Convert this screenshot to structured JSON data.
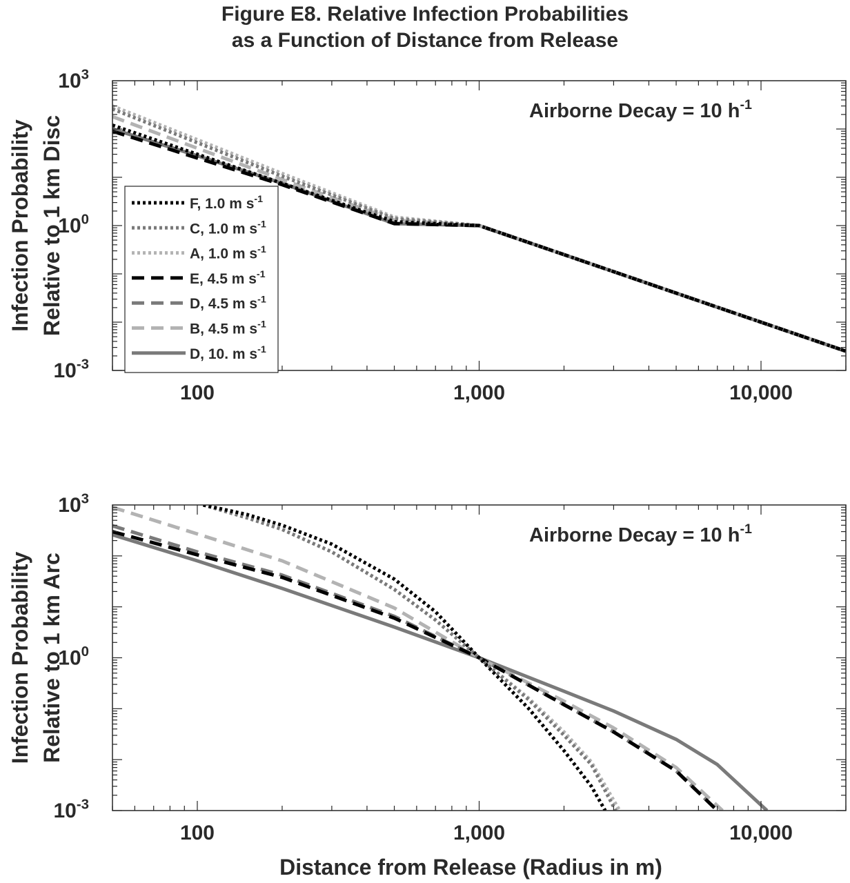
{
  "figure": {
    "title_line1": "Figure E8. Relative Infection Probabilities",
    "title_line2": "as a Function of Distance from Release"
  },
  "chart_data": [
    {
      "type": "line",
      "id": "top",
      "ylabel_line1": "Infection Probability",
      "ylabel_line2": "Relative to 1 km Disc",
      "xlabel": "",
      "annotation": {
        "text": "Airborne Decay = 10 h",
        "sup": "-1"
      },
      "xscale": "log",
      "yscale": "log",
      "xlim": [
        50,
        20000
      ],
      "ylim": [
        0.001,
        1000
      ],
      "xticks": [
        100,
        1000,
        10000
      ],
      "xtick_labels": [
        "100",
        "1,000",
        "10,000"
      ],
      "yticks": [
        0.001,
        1,
        1000
      ],
      "ytick_labels": [
        {
          "base": "10",
          "exp": "-3"
        },
        {
          "base": "10",
          "exp": "0"
        },
        {
          "base": "10",
          "exp": "3"
        }
      ],
      "legend": {
        "placement": "left",
        "entries": [
          {
            "label": "F, 1.0 m s",
            "sup": "-1",
            "color": "#000000",
            "style": "dotted"
          },
          {
            "label": "C, 1.0 m s",
            "sup": "-1",
            "color": "#7a7a7a",
            "style": "dotted"
          },
          {
            "label": "A, 1.0 m s",
            "sup": "-1",
            "color": "#b3b3b3",
            "style": "dotted"
          },
          {
            "label": "E, 4.5 m s",
            "sup": "-1",
            "color": "#000000",
            "style": "dashed"
          },
          {
            "label": "D, 4.5 m s",
            "sup": "-1",
            "color": "#7a7a7a",
            "style": "dashed"
          },
          {
            "label": "B, 4.5 m s",
            "sup": "-1",
            "color": "#b3b3b3",
            "style": "dashed"
          },
          {
            "label": "D, 10. m s",
            "sup": "-1",
            "color": "#7a7a7a",
            "style": "solid"
          }
        ]
      },
      "series": [
        {
          "name": "F, 1.0 m s-1",
          "color": "#000000",
          "style": "dotted",
          "x": [
            50,
            100,
            200,
            500,
            1000,
            2000,
            5000,
            10000,
            20000
          ],
          "y": [
            120,
            30,
            7.5,
            1.2,
            1,
            0.25,
            0.04,
            0.01,
            0.0025
          ]
        },
        {
          "name": "C, 1.0 m s-1",
          "color": "#7a7a7a",
          "style": "dotted",
          "x": [
            50,
            100,
            200,
            500,
            1000,
            2000,
            5000,
            10000,
            20000
          ],
          "y": [
            260,
            52,
            10.5,
            1.4,
            1,
            0.25,
            0.04,
            0.01,
            0.0025
          ]
        },
        {
          "name": "A, 1.0 m s-1",
          "color": "#b3b3b3",
          "style": "dotted",
          "x": [
            50,
            100,
            200,
            500,
            1000,
            2000,
            5000,
            10000,
            20000
          ],
          "y": [
            300,
            60,
            12,
            1.5,
            1,
            0.25,
            0.04,
            0.01,
            0.0025
          ]
        },
        {
          "name": "E, 4.5 m s-1",
          "color": "#000000",
          "style": "dashed",
          "x": [
            50,
            100,
            200,
            500,
            1000,
            2000,
            5000,
            10000,
            20000
          ],
          "y": [
            90,
            25,
            7,
            1.1,
            1,
            0.25,
            0.04,
            0.01,
            0.0025
          ]
        },
        {
          "name": "D, 4.5 m s-1",
          "color": "#7a7a7a",
          "style": "dashed",
          "x": [
            50,
            100,
            200,
            500,
            1000,
            2000,
            5000,
            10000,
            20000
          ],
          "y": [
            100,
            27,
            7.3,
            1.1,
            1,
            0.25,
            0.04,
            0.01,
            0.0025
          ]
        },
        {
          "name": "B, 4.5 m s-1",
          "color": "#b3b3b3",
          "style": "dashed",
          "x": [
            50,
            100,
            200,
            500,
            1000,
            2000,
            5000,
            10000,
            20000
          ],
          "y": [
            180,
            40,
            9,
            1.3,
            1,
            0.25,
            0.04,
            0.01,
            0.0025
          ]
        },
        {
          "name": "D, 10. m s-1",
          "color": "#7a7a7a",
          "style": "solid",
          "x": [
            50,
            100,
            200,
            500,
            1000,
            2000,
            5000,
            10000,
            20000
          ],
          "y": [
            100,
            28,
            7.5,
            1.1,
            1,
            0.25,
            0.04,
            0.01,
            0.0025
          ]
        }
      ]
    },
    {
      "type": "line",
      "id": "bottom",
      "ylabel_line1": "Infection Probability",
      "ylabel_line2": "Relative to 1 km Arc",
      "xlabel": "Distance from Release (Radius in m)",
      "annotation": {
        "text": "Airborne Decay = 10 h",
        "sup": "-1"
      },
      "xscale": "log",
      "yscale": "log",
      "xlim": [
        50,
        20000
      ],
      "ylim": [
        0.001,
        1000
      ],
      "xticks": [
        100,
        1000,
        10000
      ],
      "xtick_labels": [
        "100",
        "1,000",
        "10,000"
      ],
      "yticks": [
        0.001,
        1,
        1000
      ],
      "ytick_labels": [
        {
          "base": "10",
          "exp": "-3"
        },
        {
          "base": "10",
          "exp": "0"
        },
        {
          "base": "10",
          "exp": "3"
        }
      ],
      "series": [
        {
          "name": "F, 1.0 m s-1",
          "color": "#000000",
          "style": "dotted",
          "x": [
            105,
            150,
            200,
            300,
            500,
            700,
            1000,
            1500,
            2000,
            2500,
            2800
          ],
          "y": [
            1000,
            650,
            400,
            170,
            35,
            8,
            1,
            0.1,
            0.015,
            0.003,
            0.001
          ]
        },
        {
          "name": "C, 1.0 m s-1",
          "color": "#7a7a7a",
          "style": "dotted",
          "x": [
            105,
            150,
            200,
            300,
            500,
            700,
            1000,
            1500,
            2000,
            2500,
            3050
          ],
          "y": [
            1000,
            560,
            330,
            120,
            22,
            5.5,
            1,
            0.15,
            0.03,
            0.008,
            0.001
          ]
        },
        {
          "name": "A, 1.0 m s-1",
          "color": "#b3b3b3",
          "style": "dotted",
          "x": [
            105,
            150,
            200,
            300,
            500,
            700,
            1000,
            1500,
            2000,
            2500,
            3150
          ],
          "y": [
            1000,
            560,
            330,
            120,
            22,
            5.5,
            1,
            0.16,
            0.035,
            0.009,
            0.001
          ]
        },
        {
          "name": "E, 4.5 m s-1",
          "color": "#000000",
          "style": "dashed",
          "x": [
            50,
            100,
            200,
            500,
            1000,
            2000,
            3000,
            5000,
            7000
          ],
          "y": [
            300,
            105,
            38,
            6,
            1,
            0.12,
            0.035,
            0.006,
            0.001
          ]
        },
        {
          "name": "D, 4.5 m s-1",
          "color": "#7a7a7a",
          "style": "dashed",
          "x": [
            50,
            100,
            200,
            500,
            1000,
            2000,
            3000,
            5000,
            7000
          ],
          "y": [
            390,
            120,
            42,
            6.5,
            1,
            0.12,
            0.035,
            0.006,
            0.001
          ]
        },
        {
          "name": "B, 4.5 m s-1",
          "color": "#b3b3b3",
          "style": "dashed",
          "x": [
            50,
            100,
            200,
            500,
            1000,
            2000,
            3000,
            5000,
            7300
          ],
          "y": [
            900,
            270,
            80,
            9.5,
            1,
            0.14,
            0.042,
            0.007,
            0.001
          ]
        },
        {
          "name": "D, 10. m s-1",
          "color": "#7a7a7a",
          "style": "solid",
          "x": [
            50,
            100,
            200,
            500,
            1000,
            2000,
            3000,
            5000,
            7000,
            10500
          ],
          "y": [
            260,
            80,
            23,
            4,
            1,
            0.22,
            0.09,
            0.025,
            0.008,
            0.001
          ]
        }
      ]
    }
  ]
}
